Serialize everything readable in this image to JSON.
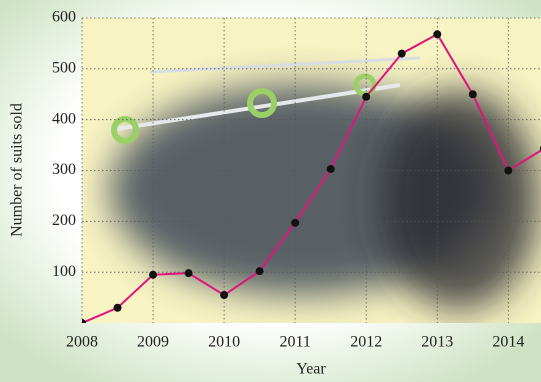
{
  "chart_data": {
    "type": "line",
    "x_label": "Year",
    "y_label": "Number of suits sold",
    "x": [
      2008,
      2008.5,
      2009,
      2009.5,
      2010,
      2010.5,
      2011,
      2011.5,
      2012,
      2012.5,
      2013,
      2013.5,
      2014,
      2014.5
    ],
    "values": [
      0,
      30,
      95,
      98,
      55,
      102,
      197,
      303,
      445,
      530,
      568,
      450,
      300,
      343
    ],
    "color": "#e0147f",
    "xlim": [
      2008,
      2014.46
    ],
    "xticks": [
      2008,
      2009,
      2010,
      2011,
      2012,
      2013,
      2014
    ],
    "ylim": [
      0,
      600
    ],
    "yticks": [
      100,
      200,
      300,
      400,
      500,
      600
    ],
    "grid": true
  }
}
